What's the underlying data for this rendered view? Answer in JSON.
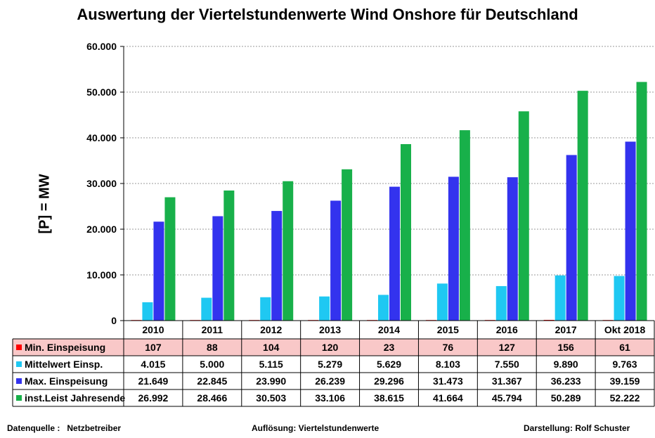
{
  "chart_data": {
    "type": "bar",
    "title": "Auswertung der Viertelstundenwerte Wind Onshore für Deutschland",
    "ylabel": "[P]  = MW",
    "ylim": [
      0,
      60000
    ],
    "yticks": [
      "0",
      "10.000",
      "20.000",
      "30.000",
      "40.000",
      "50.000",
      "60.000"
    ],
    "grid": true,
    "legend": "table",
    "categories": [
      "2010",
      "2011",
      "2012",
      "2013",
      "2014",
      "2015",
      "2016",
      "2017",
      "Okt 2018"
    ],
    "series": [
      {
        "name": "Min. Einspeisung",
        "color": "#ff0000",
        "row_bg": "#f9c8c8",
        "values": [
          107,
          88,
          104,
          120,
          23,
          76,
          127,
          156,
          61
        ],
        "labels": [
          "107",
          "88",
          "104",
          "120",
          "23",
          "76",
          "127",
          "156",
          "61"
        ]
      },
      {
        "name": "Mittelwert Einsp.",
        "color": "#1fc8f2",
        "row_bg": "#ffffff",
        "values": [
          4015,
          5000,
          5115,
          5279,
          5629,
          8103,
          7550,
          9890,
          9763
        ],
        "labels": [
          "4.015",
          "5.000",
          "5.115",
          "5.279",
          "5.629",
          "8.103",
          "7.550",
          "9.890",
          "9.763"
        ]
      },
      {
        "name": "Max. Einspeisung",
        "color": "#3333ee",
        "row_bg": "#ffffff",
        "values": [
          21649,
          22845,
          23990,
          26239,
          29296,
          31473,
          31367,
          36233,
          39159
        ],
        "labels": [
          "21.649",
          "22.845",
          "23.990",
          "26.239",
          "29.296",
          "31.473",
          "31.367",
          "36.233",
          "39.159"
        ]
      },
      {
        "name": "inst.Leist Jahresende",
        "color": "#18b04a",
        "row_bg": "#ffffff",
        "values": [
          26992,
          28466,
          30503,
          33106,
          38615,
          41664,
          45794,
          50289,
          52222
        ],
        "labels": [
          "26.992",
          "28.466",
          "30.503",
          "33.106",
          "38.615",
          "41.664",
          "45.794",
          "50.289",
          "52.222"
        ]
      }
    ]
  },
  "footer": {
    "source_label": "Datenquelle :",
    "source_value": "Netzbetreiber",
    "resolution": "Auflösung: Viertelstundenwerte",
    "author": "Darstellung: Rolf Schuster"
  }
}
